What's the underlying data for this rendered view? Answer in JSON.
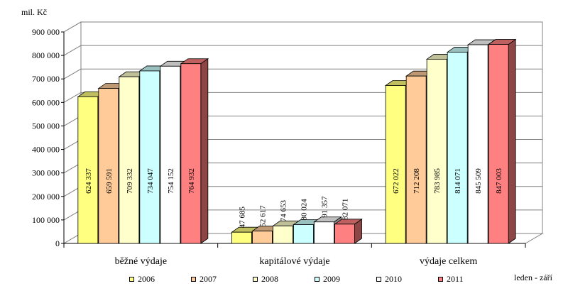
{
  "chart_data": {
    "type": "bar",
    "title": "",
    "ylabel": "mil. Kč",
    "xlabel": "",
    "ylim": [
      0,
      900000
    ],
    "yticks": [
      0,
      100000,
      200000,
      300000,
      400000,
      500000,
      600000,
      700000,
      800000,
      900000
    ],
    "ytick_labels": [
      "0",
      "100 000",
      "200 000",
      "300 000",
      "400 000",
      "500 000",
      "600 000",
      "700 000",
      "800 000",
      "900 000"
    ],
    "grid": true,
    "legend_position": "bottom",
    "categories": [
      "běžné výdaje",
      "kapitálové výdaje",
      "výdaje celkem"
    ],
    "series": [
      {
        "name": "2006",
        "color": "#ffff80",
        "values": [
          624337,
          47685,
          672022
        ],
        "labels": [
          "624 337",
          "47 685",
          "672 022"
        ]
      },
      {
        "name": "2007",
        "color": "#ffcc99",
        "values": [
          659591,
          52617,
          712208
        ],
        "labels": [
          "659 591",
          "52 617",
          "712 208"
        ]
      },
      {
        "name": "2008",
        "color": "#ffffcc",
        "values": [
          709332,
          74653,
          783985
        ],
        "labels": [
          "709 332",
          "74 653",
          "783 985"
        ]
      },
      {
        "name": "2009",
        "color": "#ccffff",
        "values": [
          734047,
          80024,
          814071
        ],
        "labels": [
          "734 047",
          "80 024",
          "814 071"
        ]
      },
      {
        "name": "2010",
        "color": "#ffffff",
        "values": [
          754152,
          91357,
          845509
        ],
        "labels": [
          "754 152",
          "91 357",
          "845 509"
        ]
      },
      {
        "name": "2011",
        "color": "#ff8080",
        "values": [
          764932,
          82071,
          847003
        ],
        "labels": [
          "764 932",
          "82 071",
          "847 003"
        ]
      }
    ],
    "annotations": [
      "leden - září"
    ]
  }
}
